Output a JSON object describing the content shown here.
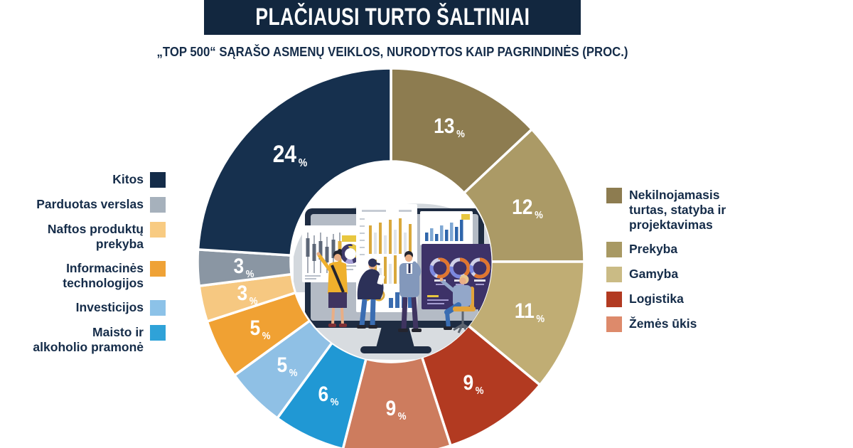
{
  "header": {
    "title": "PLAČIAUSI TURTO ŠALTINIAI",
    "subtitle": "„TOP 500“ SĄRAŠO ASMENŲ VEIKLOS, NURODYTOS KAIP PAGRINDINĖS (PROC.)",
    "banner_color": "#12273f"
  },
  "chart_data": {
    "type": "pie",
    "variant": "donut",
    "title": "Plačiausi turto šaltiniai",
    "unit": "%",
    "start_angle_deg": 0,
    "direction": "clockwise",
    "separator_color": "#ffffff",
    "segments": [
      {
        "label": "Nekilnojamasis turtas, statyba ir projektavimas",
        "value": 13,
        "color": "#8d7c50"
      },
      {
        "label": "Prekyba",
        "value": 12,
        "color": "#ab9a66"
      },
      {
        "label": "Gamyba",
        "value": 11,
        "color": "#c0ad74"
      },
      {
        "label": "Logistika",
        "value": 9,
        "color": "#b23a21"
      },
      {
        "label": "Žemės ūkis",
        "value": 9,
        "color": "#cd7c5e"
      },
      {
        "label": "Maisto ir alkoholio pramonė",
        "value": 6,
        "color": "#2098d4"
      },
      {
        "label": "Investicijos",
        "value": 5,
        "color": "#8fc0e5"
      },
      {
        "label": "Informacinės technologijos",
        "value": 5,
        "color": "#f0a133"
      },
      {
        "label": "Naftos produktų prekyba",
        "value": 3,
        "color": "#f6c881"
      },
      {
        "label": "Parduotas verslas",
        "value": 3,
        "color": "#8a96a3"
      },
      {
        "label": "Kitos",
        "value": 24,
        "color": "#16304e"
      }
    ]
  },
  "legend_left": {
    "items": [
      {
        "label": "Kitos",
        "lines": [
          "Kitos"
        ],
        "color": "#142c49"
      },
      {
        "label": "Parduotas verslas",
        "lines": [
          "Parduotas verslas"
        ],
        "color": "#a6b1bc"
      },
      {
        "label": "Naftos produktų prekyba",
        "lines": [
          "Naftos produktų",
          "prekyba"
        ],
        "color": "#f8cb82"
      },
      {
        "label": "Informacinės technologijos",
        "lines": [
          "Informacinės",
          "technologijos"
        ],
        "color": "#efa236"
      },
      {
        "label": "Investicijos",
        "lines": [
          "Investicijos"
        ],
        "color": "#8cc2e8"
      },
      {
        "label": "Maisto ir alkoholio pramonė",
        "lines": [
          "Maisto ir",
          "alkoholio pramonė"
        ],
        "color": "#2fa2d8"
      }
    ]
  },
  "legend_right": {
    "items": [
      {
        "label": "Nekilnojamasis turtas, statyba ir projektavimas",
        "lines": [
          "Nekilnojamasis",
          "turtas, statyba ir",
          "projektavimas"
        ],
        "color": "#8d7c50"
      },
      {
        "label": "Prekyba",
        "lines": [
          "Prekyba"
        ],
        "color": "#a89963"
      },
      {
        "label": "Gamyba",
        "lines": [
          "Gamyba"
        ],
        "color": "#cabb85"
      },
      {
        "label": "Logistika",
        "lines": [
          "Logistika"
        ],
        "color": "#b23a21"
      },
      {
        "label": "Žemės ūkis",
        "lines": [
          "Žemės ūkis"
        ],
        "color": "#dd8a6b"
      }
    ]
  }
}
